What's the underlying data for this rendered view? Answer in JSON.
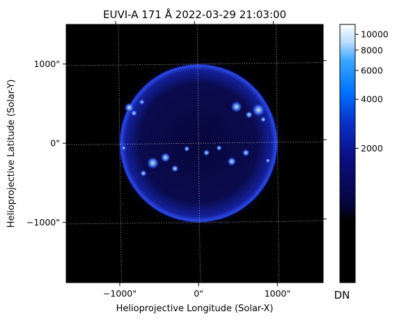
{
  "chart_data": {
    "type": "heatmap",
    "title": "EUVI-A 171 Å 2022-03-29 21:03:00",
    "xlabel": "Helioprojective Longitude (Solar-X)",
    "ylabel": "Helioprojective Latitude (Solar-Y)",
    "xticks": [
      {
        "value": -1000,
        "label": "−1000\""
      },
      {
        "value": 0,
        "label": "0\""
      },
      {
        "value": 1000,
        "label": "1000\""
      }
    ],
    "yticks": [
      {
        "value": 1000,
        "label": "1000\""
      },
      {
        "value": 0,
        "label": "0\""
      },
      {
        "value": -1000,
        "label": "−1000\""
      }
    ],
    "xlim": [
      -1680,
      1580
    ],
    "ylim": [
      -1760,
      1500
    ],
    "solar_radius_arcsec": 1000,
    "grid": true,
    "colormap": "stereo 171",
    "colors": {
      "background": "#000000",
      "disk": "#0a0a55",
      "limb": "#1f3ad0",
      "bright": "#ffffff"
    },
    "colorbar": {
      "label": "DN",
      "scale": "log",
      "range": [
        300,
        11500
      ],
      "ticks": [
        {
          "value": 2000,
          "label": "2000"
        },
        {
          "value": 4000,
          "label": "4000"
        },
        {
          "value": 6000,
          "label": "6000"
        },
        {
          "value": 8000,
          "label": "8000"
        },
        {
          "value": 10000,
          "label": "10000"
        }
      ]
    }
  }
}
